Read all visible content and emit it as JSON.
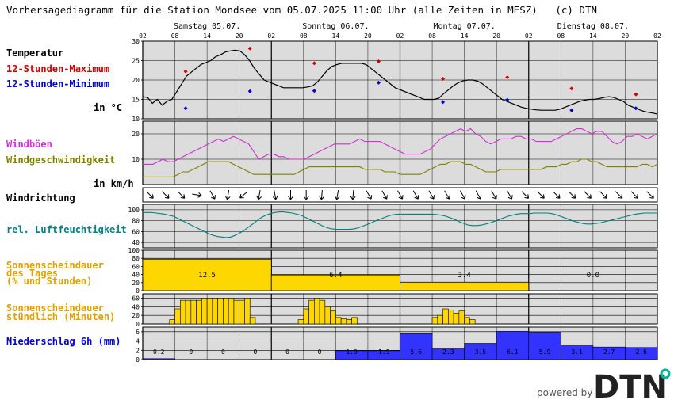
{
  "header": {
    "title": "Vorhersagediagramm für die Station Mondsee vom 05.07.2025 11:00 Uhr (alle Zeiten in MESZ)   (c) DTN"
  },
  "footer": {
    "powered_by": "powered by",
    "logo_text": "DTN"
  },
  "colors": {
    "panel_bg": "#dcdcdc",
    "grid": "#000000",
    "max": "#cc0000",
    "min": "#0000cc",
    "gust": "#cc33cc",
    "wind": "#808000",
    "humidity": "#008080",
    "sun": "#ffd700",
    "sun_label": "#e0a000",
    "precip": "#3333ff",
    "precip_label": "#0000cc",
    "logo": "#222222",
    "logo_dot": "#00b398"
  },
  "chart_data": {
    "type": "line",
    "days": [
      "Samstag 05.07.",
      "Sonntag 06.07.",
      "Montag 07.07.",
      "Dienstag 08.07."
    ],
    "hour_ticks": [
      "02",
      "08",
      "14",
      "20",
      "02",
      "08",
      "14",
      "20",
      "02",
      "08",
      "14",
      "20",
      "02",
      "08",
      "14",
      "20",
      "02"
    ],
    "panels": {
      "temperature": {
        "labels": {
          "title": "Temperatur",
          "max": "12-Stunden-Maximum",
          "min": "12-Stunden-Minimum",
          "unit": "in °C"
        },
        "y_ticks": [
          10,
          15,
          20,
          25,
          30
        ],
        "ylim": [
          10,
          30
        ],
        "curve": [
          15.7,
          15.5,
          14,
          15,
          13.5,
          14.5,
          15,
          17,
          19,
          21,
          22,
          23,
          24,
          24.5,
          25,
          26,
          26.5,
          27.2,
          27.5,
          27.7,
          27.5,
          26.5,
          25,
          23,
          21.5,
          20,
          19.5,
          19,
          18.5,
          18,
          18,
          18,
          18,
          18,
          18.2,
          18.5,
          19.5,
          21,
          22.5,
          23.5,
          24,
          24.3,
          24.3,
          24.3,
          24.3,
          24.3,
          24,
          23,
          22,
          21,
          20,
          19,
          18,
          17.5,
          17,
          16.5,
          16,
          15.5,
          15,
          15,
          15,
          15.3,
          16.5,
          17.5,
          18.5,
          19.3,
          19.8,
          20,
          20,
          19.7,
          19,
          18,
          17,
          16,
          15,
          14.5,
          14,
          13.5,
          13,
          12.7,
          12.5,
          12.3,
          12.2,
          12.2,
          12.2,
          12.2,
          12.5,
          13,
          13.5,
          14,
          14.5,
          14.8,
          15,
          15,
          15.2,
          15.5,
          15.7,
          15.5,
          15,
          14.5,
          13.5,
          13,
          12.5,
          12,
          11.7,
          11.5,
          11.2
        ],
        "maxima": [
          [
            8,
            22.2
          ],
          [
            20,
            28.1
          ],
          [
            32,
            24.3
          ],
          [
            44,
            24.8
          ],
          [
            56,
            20.3
          ],
          [
            68,
            20.7
          ],
          [
            80,
            17.8
          ],
          [
            92,
            16.3
          ]
        ],
        "minima": [
          [
            8,
            12.7
          ],
          [
            20,
            17.1
          ],
          [
            32,
            17.2
          ],
          [
            44,
            19.3
          ],
          [
            56,
            14.3
          ],
          [
            68,
            14.9
          ],
          [
            80,
            12.2
          ],
          [
            92,
            12.7
          ]
        ]
      },
      "wind": {
        "labels": {
          "gust": "Windböen",
          "speed": "Windgeschwindigkeit",
          "unit": "in km/h"
        },
        "y_ticks": [
          10,
          20
        ],
        "ylim": [
          0,
          25
        ],
        "gust": [
          8,
          8,
          8,
          9,
          10,
          9,
          9,
          10,
          11,
          12,
          13,
          14,
          15,
          16,
          17,
          18,
          17,
          18,
          19,
          18,
          17,
          16,
          13,
          10,
          11,
          12,
          12,
          11,
          11,
          10,
          10,
          10,
          10,
          11,
          12,
          13,
          14,
          15,
          16,
          16,
          16,
          16,
          17,
          18,
          17,
          17,
          17,
          17,
          16,
          15,
          14,
          13,
          12,
          12,
          12,
          12,
          13,
          14,
          16,
          18,
          19,
          20,
          21,
          22,
          21,
          22,
          20,
          19,
          17,
          16,
          17,
          18,
          18,
          18,
          19,
          19,
          18,
          18,
          17,
          17,
          17,
          17,
          18,
          19,
          20,
          21,
          22,
          22,
          21,
          20,
          21,
          21,
          19,
          17,
          16,
          17,
          19,
          19,
          20,
          19,
          18,
          19,
          20
        ],
        "speed": [
          3,
          3,
          3,
          3,
          3,
          3,
          3,
          4,
          5,
          5,
          6,
          7,
          8,
          9,
          9,
          9,
          9,
          9,
          8,
          7,
          6,
          5,
          4,
          4,
          4,
          4,
          4,
          4,
          4,
          4,
          4,
          5,
          6,
          7,
          7,
          7,
          7,
          7,
          7,
          7,
          7,
          7,
          7,
          7,
          6,
          6,
          6,
          6,
          5,
          5,
          5,
          4,
          4,
          4,
          4,
          4,
          5,
          6,
          7,
          8,
          8,
          9,
          9,
          9,
          8,
          8,
          7,
          6,
          5,
          5,
          5,
          6,
          6,
          6,
          6,
          6,
          6,
          6,
          6,
          6,
          7,
          7,
          7,
          8,
          8,
          9,
          9,
          10,
          10,
          9,
          9,
          8,
          7,
          7,
          7,
          7,
          7,
          7,
          7,
          8,
          8,
          7,
          8
        ]
      },
      "wind_direction": {
        "labels": {
          "title": "Windrichtung"
        },
        "arrows_deg": [
          45,
          45,
          45,
          45,
          45,
          30,
          45,
          20,
          30,
          0,
          10,
          30,
          40,
          60,
          70,
          80,
          100,
          120,
          130,
          140,
          135,
          130,
          100,
          90,
          90,
          90,
          80,
          80,
          80,
          90,
          90,
          90,
          90,
          90,
          90,
          95,
          100,
          100,
          100,
          100,
          100,
          95,
          90,
          80,
          70,
          60,
          60,
          60,
          60,
          60,
          60,
          60,
          60,
          60,
          60,
          60,
          60,
          60,
          60,
          60,
          60,
          60,
          60,
          60,
          60,
          60,
          60,
          60,
          60,
          60,
          60,
          60,
          60,
          60,
          60,
          45,
          45,
          45,
          45,
          45,
          45,
          45,
          45,
          45,
          45,
          45,
          45,
          45,
          45,
          45,
          45,
          45,
          45,
          45,
          45,
          45,
          45,
          45,
          45,
          45,
          45,
          45,
          45
        ]
      },
      "humidity": {
        "labels": {
          "title": "rel. Luftfeuchtigkeit"
        },
        "y_ticks": [
          40,
          60,
          80,
          100
        ],
        "ylim": [
          30,
          110
        ],
        "values": [
          95,
          95,
          95,
          94,
          93,
          92,
          90,
          88,
          84,
          80,
          76,
          72,
          68,
          64,
          60,
          56,
          53,
          51,
          50,
          49,
          50,
          53,
          57,
          62,
          68,
          74,
          80,
          86,
          90,
          93,
          95,
          96,
          96,
          95,
          94,
          92,
          90,
          86,
          82,
          78,
          74,
          70,
          67,
          65,
          64,
          64,
          64,
          64,
          65,
          67,
          70,
          73,
          76,
          80,
          83,
          86,
          89,
          91,
          92,
          92,
          92,
          92,
          92,
          92,
          92,
          92,
          92,
          91,
          90,
          88,
          85,
          82,
          78,
          75,
          72,
          71,
          71,
          72,
          74,
          76,
          79,
          82,
          85,
          88,
          90,
          92,
          93,
          93,
          93,
          94,
          94,
          94,
          94,
          93,
          91,
          88,
          85,
          82,
          79,
          77,
          75,
          74,
          74,
          75,
          76,
          78,
          80,
          82,
          84,
          86,
          88,
          90,
          92,
          93,
          94,
          94,
          94,
          94
        ]
      },
      "sunshine_day": {
        "labels": {
          "line1": "Sonnenscheindauer",
          "line2": "des Tages",
          "line3": "(% und Stunden)"
        },
        "y_ticks": [
          0,
          20,
          40,
          60,
          80,
          100
        ],
        "ylim": [
          0,
          100
        ],
        "percent": [
          78,
          39,
          21,
          0
        ],
        "hours": [
          "12.5",
          "6.4",
          "3.4",
          "0.0"
        ]
      },
      "sunshine_hour": {
        "labels": {
          "line1": "Sonnenscheindauer",
          "line2": "stündlich (Minuten)"
        },
        "y_ticks": [
          0,
          20,
          40,
          60
        ],
        "ylim": [
          0,
          70
        ],
        "bars": [
          [
            5,
            10
          ],
          [
            6,
            35
          ],
          [
            7,
            55
          ],
          [
            8,
            55
          ],
          [
            9,
            55
          ],
          [
            10,
            55
          ],
          [
            11,
            60
          ],
          [
            12,
            60
          ],
          [
            13,
            60
          ],
          [
            14,
            60
          ],
          [
            15,
            60
          ],
          [
            16,
            60
          ],
          [
            17,
            55
          ],
          [
            18,
            55
          ],
          [
            19,
            60
          ],
          [
            20,
            15
          ],
          [
            29,
            10
          ],
          [
            30,
            35
          ],
          [
            31,
            55
          ],
          [
            32,
            60
          ],
          [
            33,
            55
          ],
          [
            34,
            40
          ],
          [
            35,
            30
          ],
          [
            36,
            15
          ],
          [
            37,
            12
          ],
          [
            38,
            10
          ],
          [
            39,
            15
          ],
          [
            54,
            15
          ],
          [
            55,
            20
          ],
          [
            56,
            35
          ],
          [
            57,
            32
          ],
          [
            58,
            25
          ],
          [
            59,
            30
          ],
          [
            60,
            15
          ],
          [
            61,
            10
          ]
        ]
      },
      "precipitation": {
        "labels": {
          "title": "Niederschlag 6h (mm)"
        },
        "y_ticks": [
          0,
          2,
          4,
          6
        ],
        "ylim": [
          0,
          7
        ],
        "values": [
          0.2,
          0,
          0,
          0,
          0,
          0,
          1.9,
          1.9,
          5.6,
          2.3,
          3.5,
          6.1,
          5.9,
          3.1,
          2.7,
          2.6
        ],
        "labels_text": [
          "0.2",
          "0",
          "0",
          "0",
          "0",
          "0",
          "1.9",
          "1.9",
          "5.6",
          "2.3",
          "3.5",
          "6.1",
          "5.9",
          "3.1",
          "2.7",
          "2.6"
        ]
      }
    }
  }
}
